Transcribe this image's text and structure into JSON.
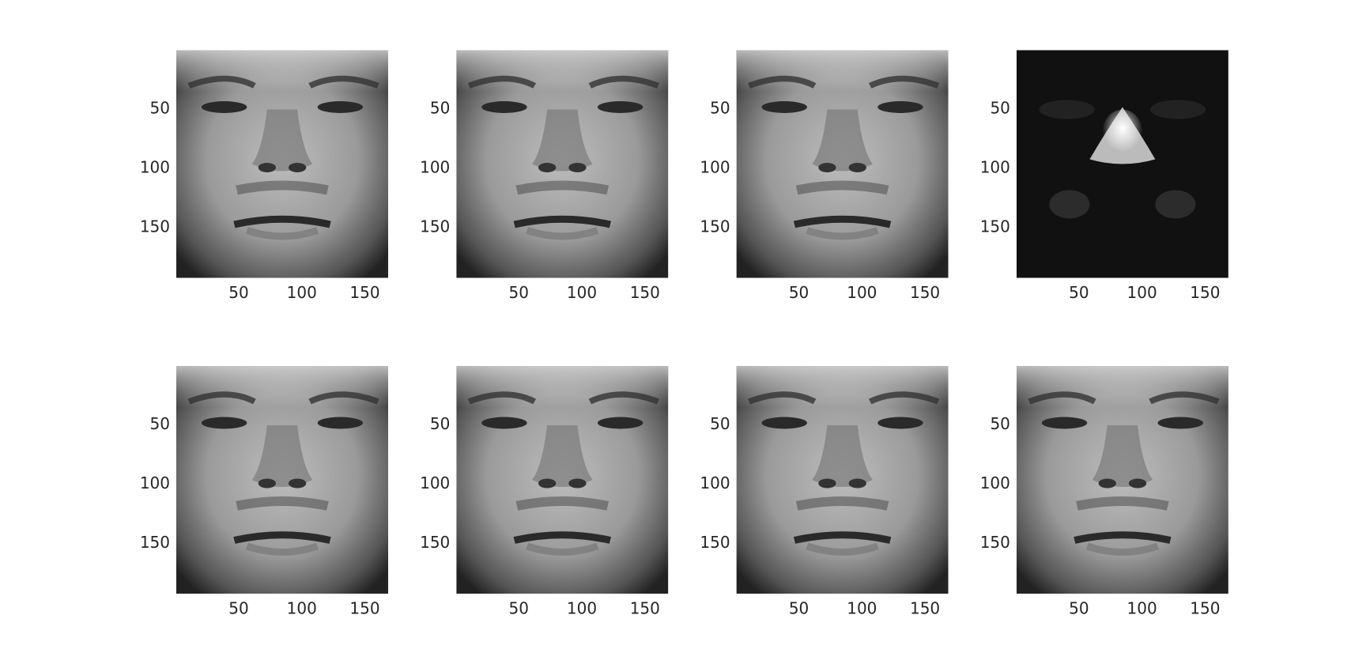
{
  "chart_data": [
    {
      "type": "image",
      "colormap": "gray",
      "y_reversed": true,
      "xlim": [
        0.5,
        168.5
      ],
      "ylim": [
        0.5,
        192.5
      ],
      "xticks": [
        50,
        100,
        150
      ],
      "yticks": [
        50,
        100,
        150
      ]
    },
    {
      "type": "image",
      "colormap": "gray",
      "y_reversed": true,
      "xlim": [
        0.5,
        168.5
      ],
      "ylim": [
        0.5,
        192.5
      ],
      "xticks": [
        50,
        100,
        150
      ],
      "yticks": [
        50,
        100,
        150
      ]
    },
    {
      "type": "image",
      "colormap": "gray",
      "y_reversed": true,
      "xlim": [
        0.5,
        168.5
      ],
      "ylim": [
        0.5,
        192.5
      ],
      "xticks": [
        50,
        100,
        150
      ],
      "yticks": [
        50,
        100,
        150
      ]
    },
    {
      "type": "image",
      "colormap": "gray",
      "y_reversed": true,
      "xlim": [
        0.5,
        168.5
      ],
      "ylim": [
        0.5,
        192.5
      ],
      "xticks": [
        50,
        100,
        150
      ],
      "yticks": [
        50,
        100,
        150
      ]
    },
    {
      "type": "image",
      "colormap": "gray",
      "y_reversed": true,
      "xlim": [
        0.5,
        168.5
      ],
      "ylim": [
        0.5,
        192.5
      ],
      "xticks": [
        50,
        100,
        150
      ],
      "yticks": [
        50,
        100,
        150
      ]
    },
    {
      "type": "image",
      "colormap": "gray",
      "y_reversed": true,
      "xlim": [
        0.5,
        168.5
      ],
      "ylim": [
        0.5,
        192.5
      ],
      "xticks": [
        50,
        100,
        150
      ],
      "yticks": [
        50,
        100,
        150
      ]
    },
    {
      "type": "image",
      "colormap": "gray",
      "y_reversed": true,
      "xlim": [
        0.5,
        168.5
      ],
      "ylim": [
        0.5,
        192.5
      ],
      "xticks": [
        50,
        100,
        150
      ],
      "yticks": [
        50,
        100,
        150
      ]
    },
    {
      "type": "image",
      "colormap": "gray",
      "y_reversed": true,
      "xlim": [
        0.5,
        168.5
      ],
      "ylim": [
        0.5,
        192.5
      ],
      "xticks": [
        50,
        100,
        150
      ],
      "yticks": [
        50,
        100,
        150
      ]
    }
  ]
}
